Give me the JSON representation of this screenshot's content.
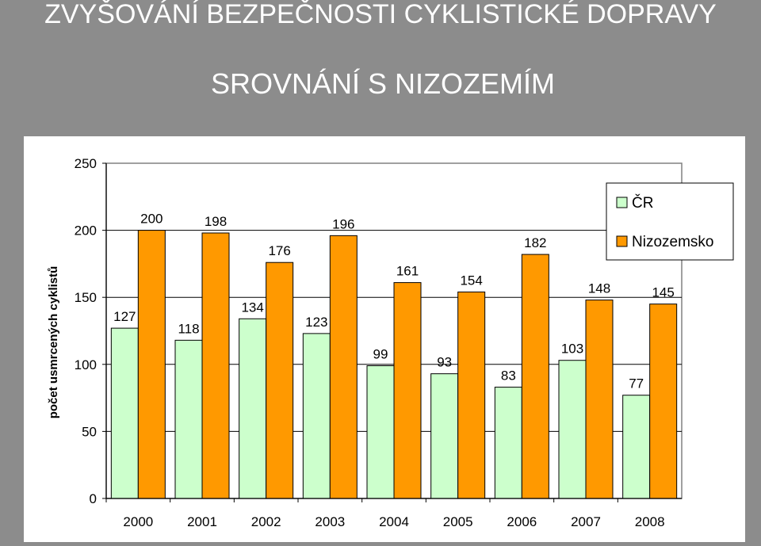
{
  "slide": {
    "title": "ZVYŠOVÁNÍ BEZPEČNOSTI CYKLISTICKÉ DOPRAVY",
    "subtitle": "SROVNÁNÍ S NIZOZEMÍM"
  },
  "chart_data": {
    "type": "bar",
    "title": "",
    "xlabel": "",
    "ylabel": "počet usmrcených cyklistů",
    "ylim": [
      0,
      250
    ],
    "yticks": [
      0,
      50,
      100,
      150,
      200,
      250
    ],
    "grid": true,
    "legend_position": "top-right",
    "categories": [
      "2000",
      "2001",
      "2002",
      "2003",
      "2004",
      "2005",
      "2006",
      "2007",
      "2008"
    ],
    "series": [
      {
        "name": "ČR",
        "color": "#ccffcc",
        "values": [
          127,
          118,
          134,
          123,
          99,
          93,
          83,
          103,
          77
        ]
      },
      {
        "name": "Nizozemsko",
        "color": "#ff9900",
        "values": [
          200,
          198,
          176,
          196,
          161,
          154,
          182,
          148,
          145
        ]
      }
    ]
  }
}
